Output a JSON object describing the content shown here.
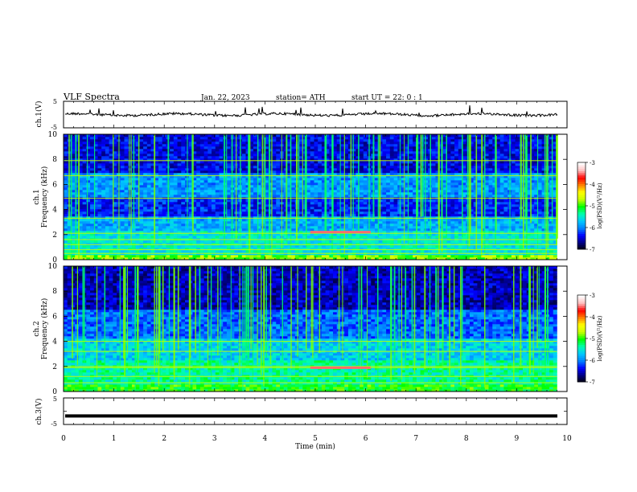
{
  "header": {
    "title": "VLF  Spectra",
    "date": "Jan. 22, 2023",
    "station": "station= ATH",
    "start_ut": "start  UT  =   22: 0   : 1"
  },
  "chart_data": [
    {
      "type": "line",
      "name": "ch1-waveform",
      "ylabel": "ch.1(V)",
      "ylim": [
        -5,
        5
      ],
      "y_ticks": [
        "5",
        "-5"
      ],
      "xlim": [
        0,
        10
      ],
      "trace_level": 0
    },
    {
      "type": "heatmap",
      "name": "ch1-spectrogram",
      "ylabel": "ch.1\nFrequency  (kHz)",
      "ylim": [
        0,
        10
      ],
      "y_ticks": [
        "0",
        "2",
        "4",
        "6",
        "8",
        "10"
      ],
      "xlim": [
        0,
        10
      ],
      "data_end_min": 9.8,
      "colorbar": {
        "label": "log(PSD)(V²/Hz)",
        "range": [
          -7,
          -3
        ],
        "ticks": [
          "-3",
          "-4",
          "-5",
          "-6",
          "-7"
        ]
      },
      "line_features_khz": [
        0.5,
        0.8,
        1.2,
        1.6,
        2.1,
        3.3,
        4.9,
        6.7,
        7.9
      ],
      "bright_segment": {
        "x_min": [
          4.9,
          6.1
        ],
        "freq_khz": 2.2
      }
    },
    {
      "type": "heatmap",
      "name": "ch2-spectrogram",
      "ylabel": "ch.2\nFrequency  (kHz)",
      "ylim": [
        0,
        10
      ],
      "y_ticks": [
        "0",
        "2",
        "4",
        "6",
        "8",
        "10"
      ],
      "xlim": [
        0,
        10
      ],
      "data_end_min": 9.8,
      "colorbar": {
        "label": "log(PSD)(V²/Hz)",
        "range": [
          -7,
          -3
        ],
        "ticks": [
          "-3",
          "-4",
          "-5",
          "-6",
          "-7"
        ]
      },
      "line_features_khz": [
        0.7,
        1.2,
        1.9,
        2.0,
        3.2,
        4.0
      ],
      "bright_segment": {
        "x_min": [
          4.9,
          6.1
        ],
        "freq_khz": 1.9
      }
    },
    {
      "type": "line",
      "name": "ch3-waveform",
      "ylabel": "ch.3(V)",
      "ylim": [
        -5,
        5
      ],
      "y_ticks": [
        "5",
        "0",
        "-5"
      ],
      "xlim": [
        0,
        10
      ],
      "x_ticks": [
        "0",
        "1",
        "2",
        "3",
        "4",
        "5",
        "6",
        "7",
        "8",
        "9",
        "10"
      ],
      "xlabel": "Time  (min)",
      "trace_level": -1.8
    }
  ],
  "colors": {
    "scale": [
      "#000000",
      "#000080",
      "#0000ff",
      "#0080ff",
      "#00c8ff",
      "#00ffb0",
      "#00ff00",
      "#c8ff00",
      "#ffff00",
      "#ff8000",
      "#ff0000",
      "#ffc0c0",
      "#ffffff"
    ]
  }
}
